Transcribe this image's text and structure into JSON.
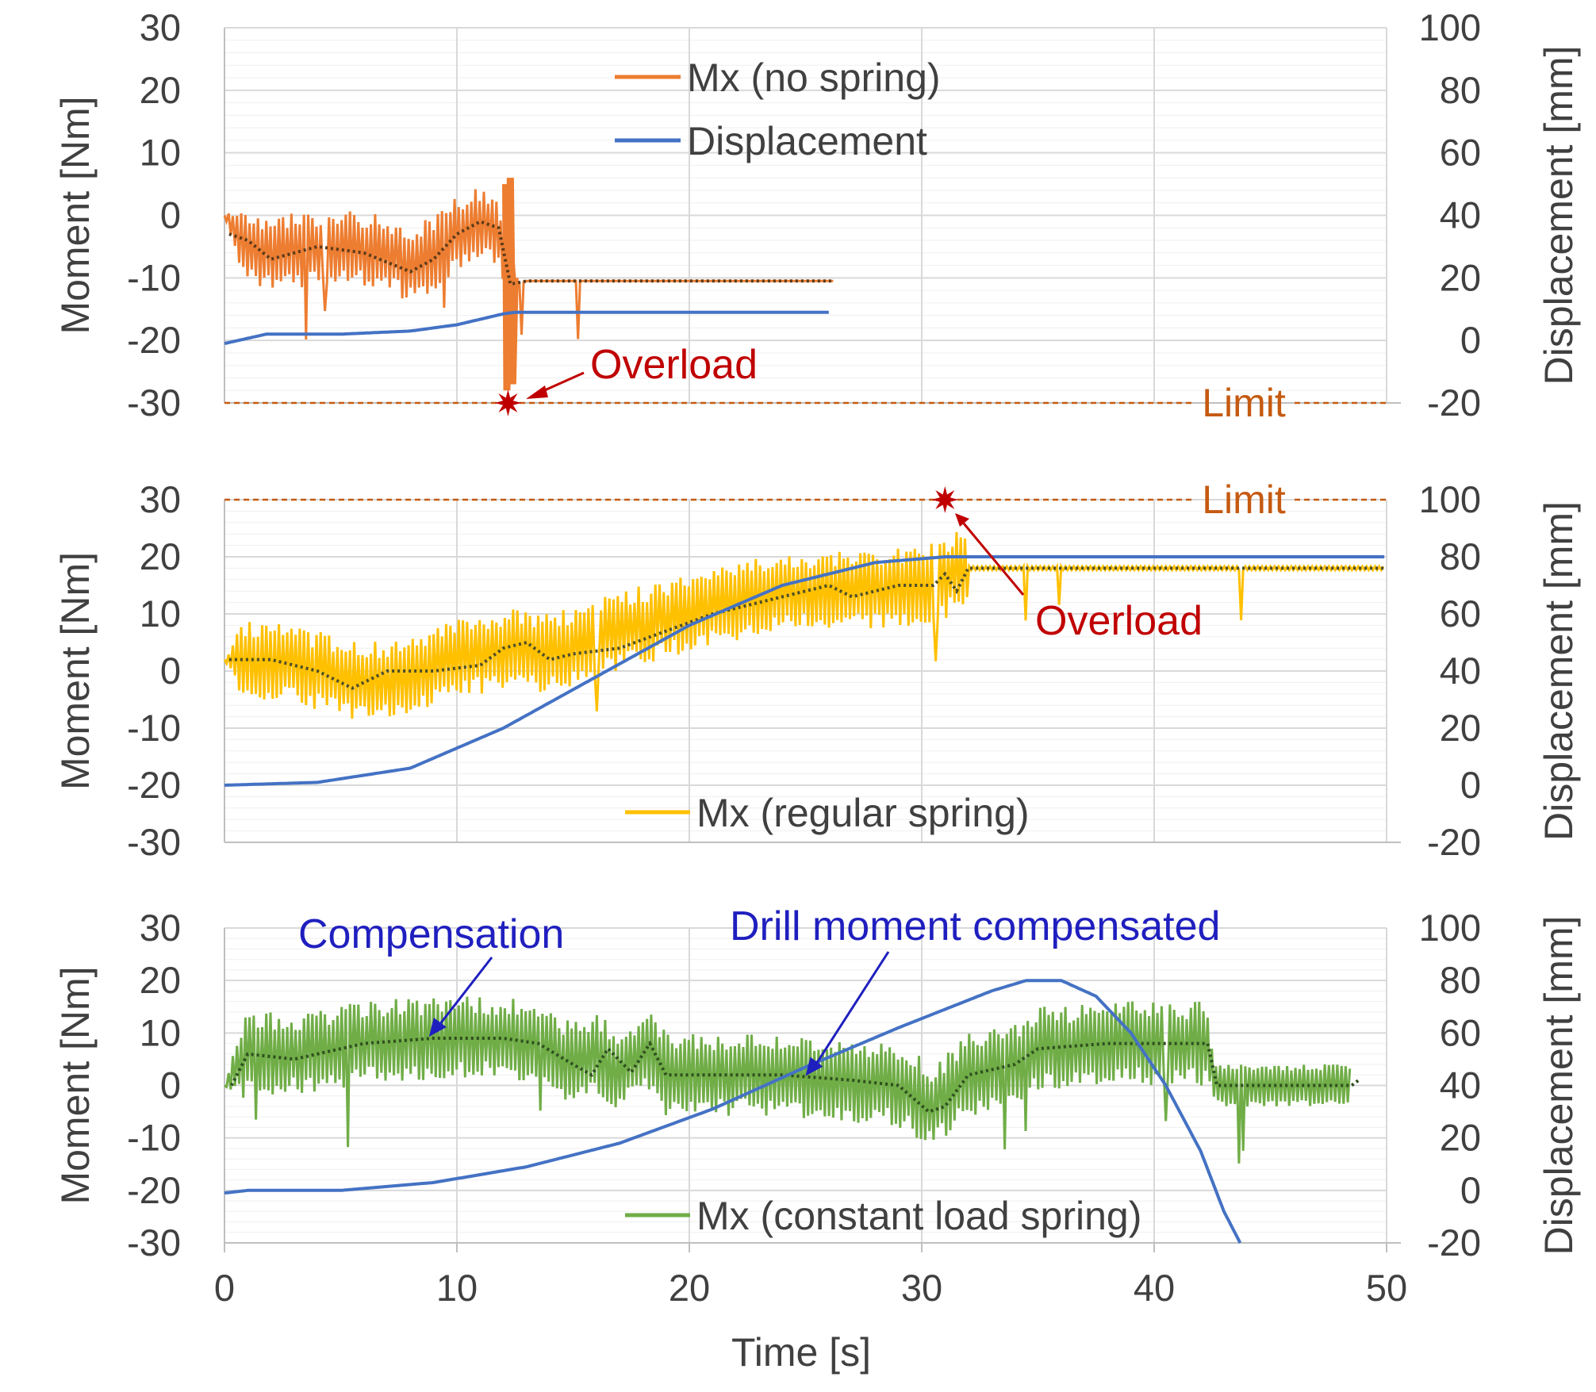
{
  "chart_data": [
    {
      "type": "line",
      "panel": "top",
      "ylabel": "Moment [Nm]",
      "y2label": "Displacement [mm]",
      "xlim": [
        0,
        50
      ],
      "ylim": [
        -30,
        30
      ],
      "y2lim": [
        -20,
        100
      ],
      "yticks": [
        "30",
        "20",
        "10",
        "0",
        "-10",
        "-20",
        "-30"
      ],
      "y2ticks": [
        "100",
        "80",
        "60",
        "40",
        "20",
        "0",
        "-20"
      ],
      "legend": [
        "Mx (no spring)",
        "Displacement"
      ],
      "colors": {
        "moment": "#ed7d31",
        "displacement": "#4472c4",
        "mean": "#5a3a1a",
        "limit": "#c55a11",
        "overload": "#c00000"
      },
      "series": [
        {
          "name": "Mx (no spring)",
          "kind": "band",
          "points": [
            [
              0,
              0
            ],
            [
              0.6,
              -3
            ],
            [
              1.5,
              -6
            ],
            [
              2,
              -6
            ],
            [
              5,
              -5
            ],
            [
              7,
              -6
            ],
            [
              8,
              -8
            ],
            [
              9,
              -6
            ],
            [
              10,
              -3
            ],
            [
              11,
              -1
            ],
            [
              11.8,
              -3
            ],
            [
              12.2,
              -10
            ],
            [
              12.6,
              -11
            ],
            [
              13,
              -10.5
            ],
            [
              26.2,
              -10.5
            ]
          ],
          "amplitude": 6
        },
        {
          "name": "Mx mean",
          "kind": "dotted",
          "points": [
            [
              0.2,
              -3
            ],
            [
              1,
              -4
            ],
            [
              2,
              -7
            ],
            [
              4,
              -5
            ],
            [
              6,
              -6
            ],
            [
              8,
              -9
            ],
            [
              9,
              -7
            ],
            [
              10,
              -3
            ],
            [
              11,
              -1
            ],
            [
              11.8,
              -2
            ],
            [
              12.3,
              -11
            ],
            [
              13,
              -10.5
            ],
            [
              26.2,
              -10.5
            ]
          ]
        },
        {
          "name": "Displacement",
          "kind": "line",
          "axis": "y2",
          "points": [
            [
              0,
              -1
            ],
            [
              1.8,
              2
            ],
            [
              5,
              2
            ],
            [
              8,
              3
            ],
            [
              10,
              5
            ],
            [
              12,
              8.5
            ],
            [
              12.5,
              9
            ],
            [
              26,
              9
            ]
          ]
        },
        {
          "name": "Limit",
          "kind": "dashed",
          "value": -30
        }
      ],
      "overload_point": [
        12.2,
        -30
      ],
      "annotations": {
        "overload": "Overload",
        "limit": "Limit"
      }
    },
    {
      "type": "line",
      "panel": "middle",
      "ylabel": "Moment [Nm]",
      "y2label": "Displacement [mm]",
      "xlim": [
        0,
        50
      ],
      "ylim": [
        -30,
        30
      ],
      "y2lim": [
        -20,
        100
      ],
      "yticks": [
        "30",
        "20",
        "10",
        "0",
        "-10",
        "-20",
        "-30"
      ],
      "y2ticks": [
        "100",
        "80",
        "60",
        "40",
        "20",
        "0",
        "-20"
      ],
      "legend": [
        "Mx (regular spring)"
      ],
      "colors": {
        "moment": "#ffc000",
        "displacement": "#4472c4",
        "mean": "#4d4d2a",
        "limit": "#c55a11",
        "overload": "#c00000"
      },
      "series": [
        {
          "name": "Mx (regular spring)",
          "kind": "band",
          "points": [
            [
              0,
              2
            ],
            [
              2,
              2
            ],
            [
              4,
              0
            ],
            [
              6,
              -2
            ],
            [
              8,
              -1
            ],
            [
              10,
              2
            ],
            [
              12,
              4
            ],
            [
              14,
              3
            ],
            [
              16,
              6
            ],
            [
              18,
              8
            ],
            [
              20,
              10
            ],
            [
              22,
              12
            ],
            [
              24,
              14
            ],
            [
              26,
              14
            ],
            [
              28,
              14
            ],
            [
              30,
              15
            ],
            [
              31,
              16
            ],
            [
              31.6,
              18
            ],
            [
              32,
              18
            ],
            [
              49.9,
              18
            ]
          ],
          "amplitude": 7
        },
        {
          "name": "Mx mean",
          "kind": "dotted",
          "points": [
            [
              0.2,
              2
            ],
            [
              2,
              2
            ],
            [
              4,
              0
            ],
            [
              5.5,
              -3
            ],
            [
              7,
              0
            ],
            [
              9,
              0
            ],
            [
              11,
              1
            ],
            [
              12,
              4
            ],
            [
              13,
              5
            ],
            [
              14,
              2
            ],
            [
              15,
              3
            ],
            [
              17,
              4
            ],
            [
              19,
              7
            ],
            [
              21,
              10
            ],
            [
              23,
              12
            ],
            [
              25,
              14
            ],
            [
              26,
              15
            ],
            [
              27,
              13
            ],
            [
              29,
              15
            ],
            [
              30.5,
              15
            ],
            [
              31,
              17
            ],
            [
              31.5,
              14
            ],
            [
              32,
              18
            ],
            [
              49.9,
              18
            ]
          ]
        },
        {
          "name": "Displacement",
          "kind": "line",
          "axis": "y2",
          "points": [
            [
              0,
              0
            ],
            [
              4,
              1
            ],
            [
              8,
              6
            ],
            [
              12,
              20
            ],
            [
              16,
              38
            ],
            [
              20,
              56
            ],
            [
              24,
              70
            ],
            [
              28,
              78
            ],
            [
              31,
              80
            ],
            [
              49.9,
              80
            ]
          ]
        },
        {
          "name": "Limit",
          "kind": "dashed",
          "value": 30
        }
      ],
      "overload_point": [
        31,
        30
      ],
      "annotations": {
        "overload": "Overload",
        "limit": "Limit"
      }
    },
    {
      "type": "line",
      "panel": "bottom",
      "ylabel": "Moment [Nm]",
      "y2label": "Displacement [mm]",
      "xlabel": "Time [s]",
      "xlim": [
        0,
        50
      ],
      "ylim": [
        -30,
        30
      ],
      "y2lim": [
        -20,
        100
      ],
      "xticks": [
        "0",
        "10",
        "20",
        "30",
        "40",
        "50"
      ],
      "yticks": [
        "30",
        "20",
        "10",
        "0",
        "-10",
        "-20",
        "-30"
      ],
      "y2ticks": [
        "100",
        "80",
        "60",
        "40",
        "20",
        "0",
        "-20"
      ],
      "legend": [
        "Mx (constant load spring)"
      ],
      "colors": {
        "moment": "#70ad47",
        "displacement": "#4472c4",
        "mean": "#2f4f1f"
      },
      "series": [
        {
          "name": "Mx (constant load spring)",
          "kind": "band",
          "points": [
            [
              0,
              0
            ],
            [
              1,
              6
            ],
            [
              3,
              6
            ],
            [
              6,
              8
            ],
            [
              9,
              9
            ],
            [
              12,
              9
            ],
            [
              13.5,
              8
            ],
            [
              15,
              4
            ],
            [
              16,
              6
            ],
            [
              17,
              3
            ],
            [
              18.5,
              7
            ],
            [
              19,
              2
            ],
            [
              24,
              2
            ],
            [
              27,
              1
            ],
            [
              29,
              0
            ],
            [
              30.5,
              -4
            ],
            [
              31,
              -2
            ],
            [
              32,
              2
            ],
            [
              34,
              4
            ],
            [
              35,
              7
            ],
            [
              38,
              8
            ],
            [
              42.3,
              8
            ],
            [
              42.6,
              0
            ],
            [
              48.5,
              0
            ]
          ],
          "amplitude": 8
        },
        {
          "name": "Mx mean",
          "kind": "dotted",
          "points": [
            [
              0.3,
              0
            ],
            [
              1,
              6
            ],
            [
              3,
              5
            ],
            [
              6,
              8
            ],
            [
              9,
              9
            ],
            [
              12,
              9
            ],
            [
              13.5,
              8
            ],
            [
              15,
              4
            ],
            [
              15.8,
              2
            ],
            [
              16.5,
              7
            ],
            [
              17.5,
              2.5
            ],
            [
              18.3,
              8
            ],
            [
              19,
              2
            ],
            [
              24,
              2
            ],
            [
              27,
              1
            ],
            [
              29,
              0
            ],
            [
              30.3,
              -5
            ],
            [
              31,
              -4
            ],
            [
              32,
              2
            ],
            [
              34,
              4
            ],
            [
              35,
              7
            ],
            [
              38,
              8
            ],
            [
              42.3,
              8
            ],
            [
              42.7,
              0
            ],
            [
              48.5,
              0
            ],
            [
              48.8,
              1
            ]
          ]
        },
        {
          "name": "Displacement",
          "kind": "line",
          "axis": "y2",
          "points": [
            [
              0,
              -1
            ],
            [
              1,
              0
            ],
            [
              5,
              0
            ],
            [
              9,
              3
            ],
            [
              13,
              9
            ],
            [
              17,
              18
            ],
            [
              21,
              31
            ],
            [
              25,
              47
            ],
            [
              29,
              62
            ],
            [
              33,
              76
            ],
            [
              34.5,
              80
            ],
            [
              36,
              80
            ],
            [
              37.5,
              74
            ],
            [
              39,
              60
            ],
            [
              40.5,
              40
            ],
            [
              42,
              15
            ],
            [
              43,
              -8
            ],
            [
              43.7,
              -20
            ]
          ]
        }
      ],
      "annotations": {
        "compensation": "Compensation",
        "compensated": "Drill moment compensated"
      },
      "compensation_arrow_target": [
        8.8,
        9
      ],
      "compensated_arrow_target": [
        25,
        1.5
      ]
    }
  ]
}
